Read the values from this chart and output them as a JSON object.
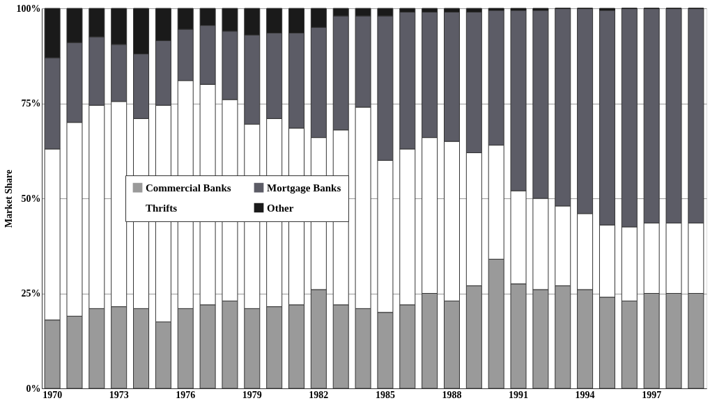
{
  "chart_data": {
    "type": "bar",
    "stacked": true,
    "ylabel": "Market Share",
    "categories": [
      "1970",
      null,
      null,
      "1973",
      null,
      null,
      "1976",
      null,
      null,
      "1979",
      null,
      null,
      "1982",
      null,
      null,
      "1985",
      null,
      null,
      "1988",
      null,
      null,
      "1991",
      null,
      null,
      "1994",
      null,
      null,
      "1997",
      null,
      null
    ],
    "series": [
      {
        "name": "Commercial Banks",
        "color": "#9a9a9a",
        "values": [
          18,
          19,
          21,
          21.5,
          21,
          17.5,
          21,
          22,
          23,
          21,
          21.5,
          22,
          26,
          22,
          21,
          20,
          22,
          25,
          23,
          27,
          34,
          27.5,
          26,
          27,
          26,
          24,
          23,
          25,
          25,
          25
        ]
      },
      {
        "name": "Thrifts",
        "color": "#ffffff",
        "values": [
          45,
          51,
          53.5,
          54,
          50,
          57,
          60,
          58,
          53,
          48.5,
          49.5,
          46.5,
          40,
          46,
          53,
          40,
          41,
          41,
          42,
          35,
          30,
          24.5,
          24,
          21,
          20,
          19,
          19.5,
          18.5,
          18.5,
          18.5
        ]
      },
      {
        "name": "Mortgage Banks",
        "color": "#5c5c66",
        "values": [
          24,
          21,
          18,
          15,
          17,
          17,
          13.5,
          15.5,
          18,
          23.5,
          22.5,
          25,
          29,
          30,
          24,
          38,
          36,
          33,
          34,
          37,
          35.5,
          47.5,
          49.5,
          52,
          54,
          56.5,
          57.5,
          56.5,
          56.5,
          56.5
        ]
      },
      {
        "name": "Other",
        "color": "#1a1a1a",
        "values": [
          13,
          9,
          7.5,
          9.5,
          12,
          8.5,
          5.5,
          4.5,
          6,
          7,
          6.5,
          6.5,
          5,
          2,
          2,
          2,
          1,
          1,
          1,
          1,
          0.5,
          0.5,
          0.5,
          0,
          0,
          0.5,
          0,
          0,
          0,
          0
        ]
      }
    ],
    "ylim": [
      0,
      100
    ],
    "yticks": [
      {
        "value": 0,
        "label": "0%"
      },
      {
        "value": 25,
        "label": "25%"
      },
      {
        "value": 50,
        "label": "50%"
      },
      {
        "value": 75,
        "label": "75%"
      },
      {
        "value": 100,
        "label": "100%"
      }
    ],
    "grid": "y",
    "legend": "center left"
  }
}
